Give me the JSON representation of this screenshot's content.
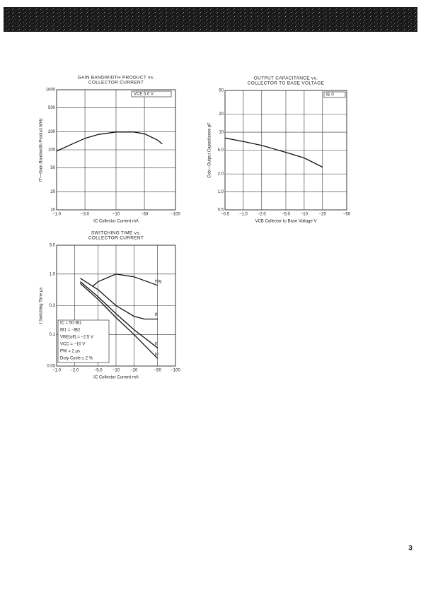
{
  "chart_data": [
    {
      "type": "line",
      "title": [
        "GAIN BANDWIDTH PRODUCT vs.",
        "COLLECTOR CURRENT"
      ],
      "x_label": "IC  Collector Current   mA",
      "y_label": "fT—Gain Bandwidth Product   MHz",
      "annotations": [
        "VCE   5.0 V"
      ],
      "log_scale": true,
      "grid": true,
      "xlim": [
        -1,
        -100
      ],
      "xticks": [
        {
          "value": -1,
          "label": "−1.0"
        },
        {
          "value": -3,
          "label": "−3.0"
        },
        {
          "value": -10,
          "label": "−10"
        },
        {
          "value": -30,
          "label": "−30"
        },
        {
          "value": -100,
          "label": "−100"
        }
      ],
      "ylim": [
        10,
        1000
      ],
      "yticks": [
        10,
        20,
        50,
        100,
        200,
        500,
        1000
      ],
      "series": [
        {
          "color": "#111111",
          "x": [
            -1,
            -2,
            -3,
            -5,
            -10,
            -20,
            -30,
            -50,
            -60
          ],
          "values": [
            95,
            130,
            155,
            180,
            198,
            198,
            185,
            145,
            125
          ]
        }
      ]
    },
    {
      "type": "line",
      "title": [
        "OUTPUT CAPACITANCE vs.",
        "COLLECTOR TO BASE VOLTAGE"
      ],
      "x_label": "VCB  Collector to Base Voltage   V",
      "y_label": "Cob—Output Capacitance   pF",
      "annotations": [
        "IE   0"
      ],
      "log_scale": true,
      "grid": true,
      "xlim": [
        -0.5,
        -50
      ],
      "xticks": [
        {
          "value": -0.5,
          "label": "−0.5"
        },
        {
          "value": -1,
          "label": "−1.0"
        },
        {
          "value": -2,
          "label": "−2.0"
        },
        {
          "value": -5,
          "label": "−5.0"
        },
        {
          "value": -10,
          "label": "−10"
        },
        {
          "value": -20,
          "label": "−20"
        },
        {
          "value": -50,
          "label": "−50"
        }
      ],
      "ylim": [
        0.5,
        50
      ],
      "yticks": [
        0.5,
        {
          "value": 1,
          "label": "1.0"
        },
        {
          "value": 2,
          "label": "2.0"
        },
        {
          "value": 5,
          "label": "5.0"
        },
        10,
        20,
        50
      ],
      "series": [
        {
          "color": "#111111",
          "x": [
            -0.5,
            -1,
            -2,
            -5,
            -10,
            -20
          ],
          "values": [
            8,
            7,
            6,
            4.6,
            3.7,
            2.6
          ]
        }
      ]
    },
    {
      "type": "line",
      "title": [
        "SWITCHING TIME vs.",
        "COLLECTOR CURRENT"
      ],
      "x_label": "IC  Collector Current   mA",
      "y_label": "t  Switching Time   μs",
      "annotations": [
        "IC = 50·IB1",
        "IB1 = −IB2",
        "VBE(off) = −2.5 V",
        "VCC = −10 V",
        "PW = 2 μs",
        "Duty Cycle ≤ 2 %"
      ],
      "log_scale": true,
      "grid": true,
      "xlim": [
        -1,
        -100
      ],
      "xticks": [
        {
          "value": -1,
          "label": "−1.0"
        },
        {
          "value": -2,
          "label": "−2.0"
        },
        {
          "value": -5,
          "label": "−5.0"
        },
        {
          "value": -10,
          "label": "−10"
        },
        {
          "value": -20,
          "label": "−20"
        },
        {
          "value": -50,
          "label": "−50"
        },
        {
          "value": -100,
          "label": "−100"
        }
      ],
      "ylim": [
        0.03,
        3
      ],
      "yticks": [
        0.03,
        0.1,
        0.3,
        {
          "value": 1,
          "label": "1.0"
        },
        {
          "value": 3,
          "label": "3.0"
        }
      ],
      "series": [
        {
          "name": "tstg",
          "color": "#111111",
          "x": [
            -4,
            -5,
            -10,
            -20,
            -50
          ],
          "values": [
            0.62,
            0.75,
            1.0,
            0.9,
            0.65
          ]
        },
        {
          "name": "tf",
          "color": "#111111",
          "x": [
            -2.5,
            -5,
            -10,
            -20,
            -30,
            -50
          ],
          "values": [
            0.85,
            0.55,
            0.3,
            0.2,
            0.18,
            0.18
          ]
        },
        {
          "name": "tr",
          "color": "#111111",
          "x": [
            -2.5,
            -5,
            -10,
            -20,
            -50
          ],
          "values": [
            0.75,
            0.42,
            0.22,
            0.12,
            0.06
          ]
        },
        {
          "name": "td",
          "color": "#111111",
          "x": [
            -2.5,
            -5,
            -10,
            -20,
            -50
          ],
          "values": [
            0.7,
            0.38,
            0.19,
            0.1,
            0.04
          ]
        }
      ]
    }
  ],
  "page_number": "3"
}
